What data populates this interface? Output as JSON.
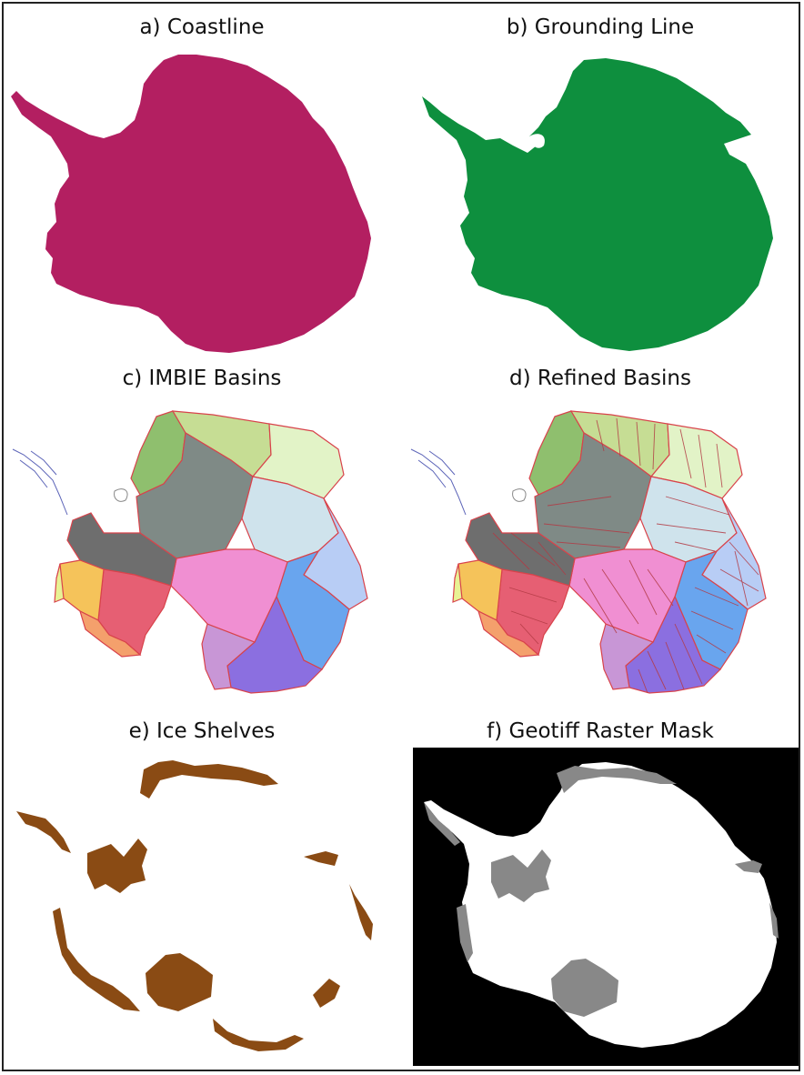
{
  "figure": {
    "panels": [
      {
        "id": "a",
        "title": "a) Coastline",
        "color": "#b31f61"
      },
      {
        "id": "b",
        "title": "b) Grounding Line",
        "color": "#0e8f3e"
      },
      {
        "id": "c",
        "title": "c) IMBIE Basins"
      },
      {
        "id": "d",
        "title": "d) Refined Basins"
      },
      {
        "id": "e",
        "title": "e) Ice Shelves",
        "color": "#8a4b14"
      },
      {
        "id": "f",
        "title": "f) Geotiff Raster Mask",
        "background": "#000000",
        "land": "#ffffff",
        "shelf": "#888888"
      }
    ],
    "basin_colors": [
      "#8fbf6e",
      "#c6dd94",
      "#e2f3c7",
      "#7f8a86",
      "#cfe3ec",
      "#b8cdf5",
      "#69a5ee",
      "#8b6fe0",
      "#c896d6",
      "#f08fd2",
      "#e65f73",
      "#f5c35a",
      "#f4a06c",
      "#e8f294",
      "#6e6e6e"
    ],
    "basin_border": "#d8434b"
  }
}
